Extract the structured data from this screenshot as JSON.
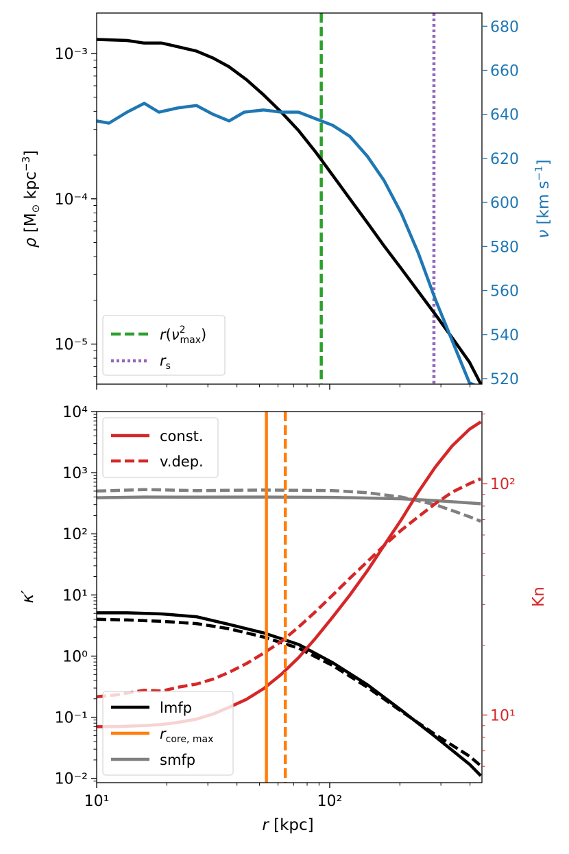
{
  "chart_data": [
    {
      "type": "line",
      "panel": "top",
      "xscale": "log",
      "xlim": [
        10,
        450
      ],
      "ylabel": "ρ [M⊙ kpc⁻³]",
      "yscale": "log",
      "ylim": [
        5.3e-06,
        0.0019
      ],
      "yticks": [
        {
          "label": "10⁻³",
          "value": 0.001
        },
        {
          "label": "10⁻⁴",
          "value": 0.0001
        },
        {
          "label": "10⁻⁵",
          "value": 1e-05
        }
      ],
      "y2label": "ν [km s⁻¹]",
      "y2lim": [
        517.5,
        686
      ],
      "y2ticks": [
        "520",
        "540",
        "560",
        "580",
        "600",
        "620",
        "640",
        "660",
        "680"
      ],
      "colors": {
        "density": "#000000",
        "sigma": "#1f77b4",
        "rv": "#2ca02c",
        "rs": "#9467bd"
      },
      "series": [
        {
          "name": "density",
          "axis": "left",
          "x": [
            10,
            13.5,
            16,
            19,
            22.5,
            26.8,
            31.6,
            37,
            44,
            52,
            62,
            73.5,
            87,
            103,
            122,
            145,
            171,
            203,
            240,
            284,
            336,
            398,
            445
          ],
          "y": [
            0.00125,
            0.00123,
            0.00118,
            0.00118,
            0.00111,
            0.00104,
            0.00093,
            0.00081,
            0.00066,
            0.00052,
            0.000395,
            0.000295,
            0.00021,
            0.000145,
            0.0001,
            6.85e-05,
            4.75e-05,
            3.3e-05,
            2.3e-05,
            1.6e-05,
            1.1e-05,
            7.5e-06,
            5.3e-06
          ]
        },
        {
          "name": "sigma",
          "axis": "right",
          "x": [
            10,
            11.3,
            13.5,
            16,
            18.5,
            22.5,
            26.8,
            31.6,
            37,
            43,
            52,
            62,
            73.5,
            87,
            103,
            122,
            145,
            171,
            203,
            240,
            284,
            336,
            398,
            445
          ],
          "y": [
            637,
            636,
            641,
            645,
            641,
            643,
            644,
            640,
            637,
            641,
            642,
            641,
            641,
            638,
            635,
            630,
            621,
            610,
            595,
            577,
            556,
            537,
            518,
            516
          ]
        }
      ],
      "vlines": [
        {
          "name": "rv",
          "x": 92,
          "style": "dashed",
          "legend": "r(ν²max)"
        },
        {
          "name": "rs",
          "x": 280,
          "style": "dotted",
          "legend": "rs"
        }
      ],
      "legend_location": "lower-left"
    },
    {
      "type": "line",
      "panel": "bottom",
      "xlabel": "r [kpc]",
      "xscale": "log",
      "xlim": [
        10,
        450
      ],
      "xticks": [
        {
          "label": "10¹",
          "value": 10
        },
        {
          "label": "10²",
          "value": 100
        }
      ],
      "ylabel": "κ′",
      "yscale": "log",
      "ylim": [
        0.0085,
        10000
      ],
      "yticks": [
        {
          "label": "10⁴",
          "value": 10000
        },
        {
          "label": "10³",
          "value": 1000
        },
        {
          "label": "10²",
          "value": 100
        },
        {
          "label": "10¹",
          "value": 10
        },
        {
          "label": "10⁰",
          "value": 1
        },
        {
          "label": "10⁻¹",
          "value": 0.1
        },
        {
          "label": "10⁻²",
          "value": 0.01
        }
      ],
      "y2label": "Kn",
      "y2scale": "log",
      "y2lim": [
        5.1,
        205
      ],
      "y2ticks": [
        {
          "label": "10¹",
          "value": 10
        },
        {
          "label": "10²",
          "value": 100
        }
      ],
      "colors": {
        "lmfp": "#000000",
        "smfp": "#808080",
        "kn": "#d62728",
        "rcore": "#ff7f0e"
      },
      "series": [
        {
          "name": "lmfp const.",
          "axis": "left",
          "style": "solid",
          "x": [
            10,
            13.5,
            19,
            26.8,
            37,
            52,
            73.5,
            103,
            145,
            203,
            284,
            398,
            445
          ],
          "y": [
            5.1,
            5.1,
            4.9,
            4.4,
            3.3,
            2.4,
            1.55,
            0.78,
            0.34,
            0.13,
            0.048,
            0.017,
            0.011
          ]
        },
        {
          "name": "lmfp v.dep.",
          "axis": "left",
          "style": "dashed",
          "x": [
            10,
            13.5,
            19,
            26.8,
            37,
            52,
            73.5,
            103,
            145,
            203,
            284,
            398,
            445
          ],
          "y": [
            4.0,
            3.9,
            3.7,
            3.4,
            2.8,
            2.05,
            1.35,
            0.7,
            0.31,
            0.125,
            0.052,
            0.023,
            0.016
          ]
        },
        {
          "name": "smfp const.",
          "axis": "left",
          "style": "solid",
          "x": [
            10,
            16,
            26.8,
            52,
            103,
            203,
            284,
            445
          ],
          "y": [
            390,
            400,
            398,
            400,
            395,
            375,
            350,
            310
          ]
        },
        {
          "name": "smfp v.dep.",
          "axis": "left",
          "style": "dashed",
          "x": [
            10,
            16,
            26.8,
            52,
            103,
            145,
            203,
            284,
            336,
            398,
            445
          ],
          "y": [
            500,
            530,
            510,
            520,
            510,
            470,
            400,
            300,
            240,
            190,
            160
          ]
        },
        {
          "name": "Kn const.",
          "axis": "right",
          "style": "solid",
          "x": [
            10,
            12,
            16,
            19,
            22.5,
            26.8,
            31.6,
            37,
            44,
            52,
            62,
            73.5,
            87,
            103,
            122,
            145,
            171,
            203,
            240,
            284,
            336,
            398,
            445
          ],
          "y": [
            8.9,
            8.9,
            9.0,
            9.1,
            9.3,
            9.6,
            10.1,
            10.8,
            11.7,
            13.0,
            15.0,
            17.7,
            21.5,
            26.5,
            33,
            42,
            54,
            70,
            92,
            118,
            146,
            172,
            185
          ]
        },
        {
          "name": "Kn v.dep.",
          "axis": "right",
          "style": "dashed",
          "x": [
            10,
            12,
            16,
            19,
            22.5,
            26.8,
            31.6,
            37,
            44,
            52,
            62,
            73.5,
            87,
            103,
            122,
            145,
            171,
            203,
            240,
            284,
            336,
            398,
            445
          ],
          "y": [
            12,
            12.2,
            12.8,
            12.7,
            13.2,
            13.6,
            14.3,
            15.3,
            16.7,
            18.5,
            20.8,
            24,
            28,
            33,
            39,
            46,
            54,
            63,
            72,
            82,
            92,
            100,
            105
          ]
        }
      ],
      "vlines": [
        {
          "name": "rcore const.",
          "x": 53.5,
          "style": "solid"
        },
        {
          "name": "rcore v.dep.",
          "x": 64.5,
          "style": "dashed"
        }
      ],
      "legends": [
        {
          "location": "upper-left",
          "entries": [
            {
              "label": "const.",
              "color": "#d62728",
              "style": "solid"
            },
            {
              "label": "v.dep.",
              "color": "#d62728",
              "style": "dashed"
            }
          ]
        },
        {
          "location": "lower-left",
          "entries": [
            {
              "label": "lmfp",
              "color": "#000000",
              "style": "solid"
            },
            {
              "label": "rcore, max",
              "color": "#ff7f0e",
              "style": "solid"
            },
            {
              "label": "smfp",
              "color": "#808080",
              "style": "solid"
            }
          ]
        }
      ]
    }
  ]
}
